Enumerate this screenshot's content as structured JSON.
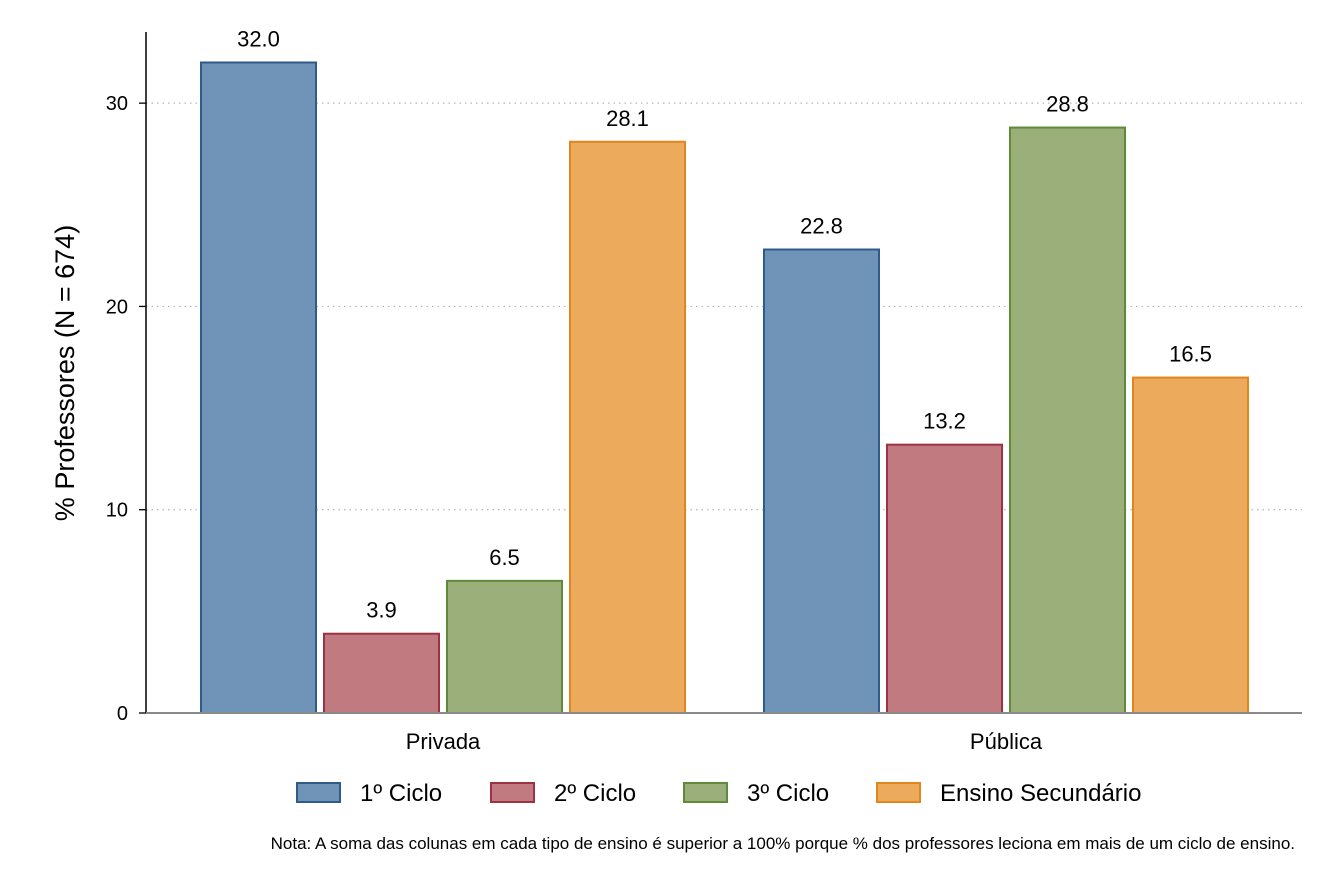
{
  "chart_data": {
    "type": "bar",
    "title": "",
    "xlabel": "",
    "ylabel": "% Professores (N = 674)",
    "ylim": [
      0,
      33.5
    ],
    "yticks": [
      0,
      10,
      20,
      30
    ],
    "grid": true,
    "legend_position": "bottom",
    "categories": [
      "Privada",
      "Pública"
    ],
    "series": [
      {
        "name": "1º Ciclo",
        "values": [
          32.0,
          22.8
        ],
        "labels": [
          "32.0",
          "22.8"
        ],
        "color": "#7094b8",
        "border": "#2f5b8a"
      },
      {
        "name": "2º Ciclo",
        "values": [
          3.9,
          13.2
        ],
        "labels": [
          "3.9",
          "13.2"
        ],
        "color": "#c07a80",
        "border": "#9c3344"
      },
      {
        "name": "3º Ciclo",
        "values": [
          6.5,
          28.8
        ],
        "labels": [
          "6.5",
          "28.8"
        ],
        "color": "#9aaf7a",
        "border": "#5f8a3a"
      },
      {
        "name": "Ensino Secundário",
        "values": [
          28.1,
          16.5
        ],
        "labels": [
          "28.1",
          "16.5"
        ],
        "color": "#ecab5c",
        "border": "#e0861c"
      }
    ],
    "note": "Nota: A soma das colunas em cada tipo de ensino é superior a 100% porque % dos professores leciona em mais de um ciclo de ensino."
  }
}
